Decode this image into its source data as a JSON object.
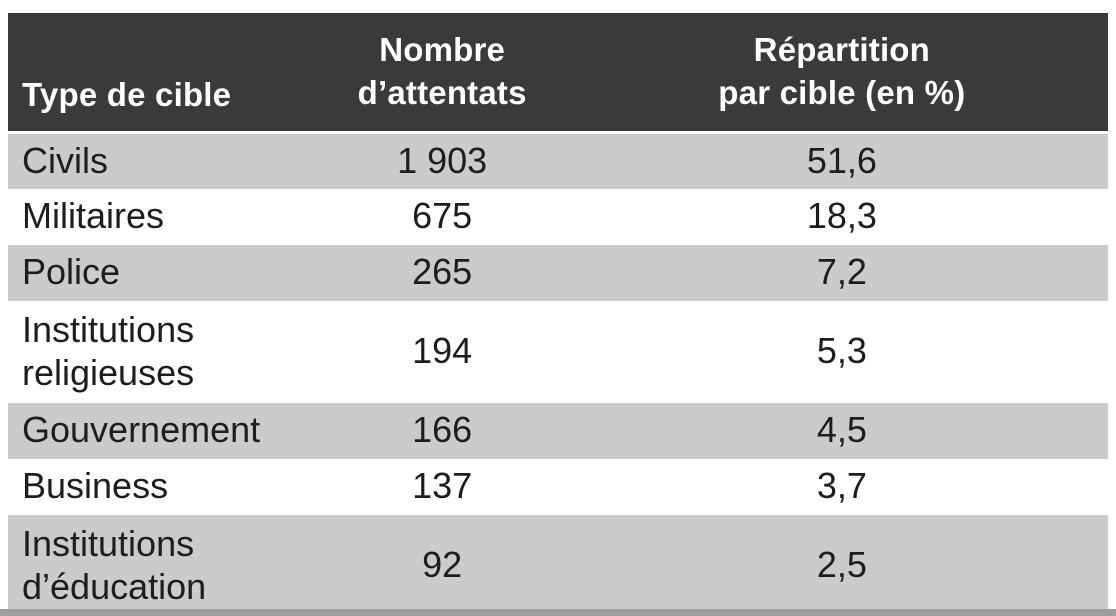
{
  "colors": {
    "header_bg": "#3b3a3a",
    "header_text": "#ffffff",
    "row_alt_bg": "#cbcbcb",
    "row_bg": "#ffffff",
    "body_text": "#1d1d1b",
    "bottom_bar": "#9e9e9e"
  },
  "table": {
    "header": {
      "col1": "Type de cible",
      "col2_line1": "Nombre",
      "col2_line2": "d’attentats",
      "col3_line1": "Répartition",
      "col3_line2": "par cible (en %)"
    },
    "rows": [
      {
        "type": "Civils",
        "count": "1 903",
        "share": "51,6"
      },
      {
        "type": "Militaires",
        "count": "675",
        "share": "18,3"
      },
      {
        "type": "Police",
        "count": "265",
        "share": "7,2"
      },
      {
        "type": "Institutions religieuses",
        "count": "194",
        "share": "5,3"
      },
      {
        "type": "Gouvernement",
        "count": "166",
        "share": "4,5"
      },
      {
        "type": "Business",
        "count": "137",
        "share": "3,7"
      },
      {
        "type": "Institutions d’éducation",
        "count": "92",
        "share": "2,5"
      }
    ]
  },
  "chart_data": {
    "type": "table",
    "columns": [
      "Type de cible",
      "Nombre d’attentats",
      "Répartition par cible (en %)"
    ],
    "rows": [
      [
        "Civils",
        1903,
        51.6
      ],
      [
        "Militaires",
        675,
        18.3
      ],
      [
        "Police",
        265,
        7.2
      ],
      [
        "Institutions religieuses",
        194,
        5.3
      ],
      [
        "Gouvernement",
        166,
        4.5
      ],
      [
        "Business",
        137,
        3.7
      ],
      [
        "Institutions d’éducation",
        92,
        2.5
      ]
    ]
  }
}
